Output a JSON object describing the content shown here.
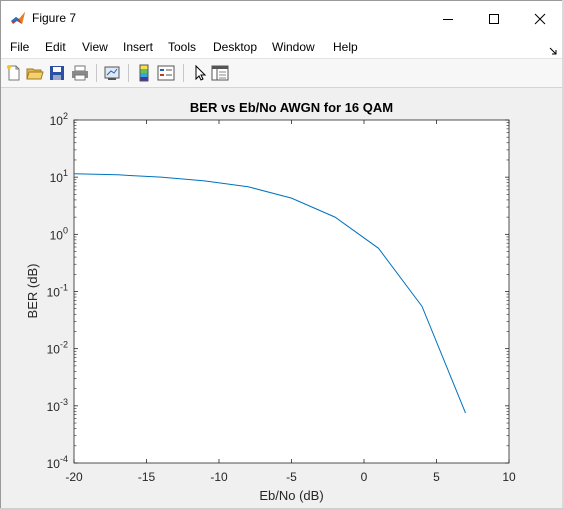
{
  "window": {
    "title": "Figure 7"
  },
  "menu": {
    "items": [
      {
        "name": "menu-file",
        "label": "File"
      },
      {
        "name": "menu-edit",
        "label": "Edit"
      },
      {
        "name": "menu-view",
        "label": "View"
      },
      {
        "name": "menu-insert",
        "label": "Insert"
      },
      {
        "name": "menu-tools",
        "label": "Tools"
      },
      {
        "name": "menu-desktop",
        "label": "Desktop"
      },
      {
        "name": "menu-window",
        "label": "Window"
      },
      {
        "name": "menu-help",
        "label": "Help"
      }
    ]
  },
  "toolbar": {
    "icons": [
      "new-figure-icon",
      "open-file-icon",
      "save-icon",
      "print-icon",
      "link-plot-icon",
      "insert-colorbar-icon",
      "insert-legend-icon",
      "edit-plot-arrow-icon",
      "property-inspector-icon"
    ]
  },
  "colors": {
    "line": "#0072BD",
    "axes_bg": "#ffffff",
    "figure_bg": "#f0f0f0"
  },
  "chart_data": {
    "type": "line",
    "title": "BER vs Eb/No AWGN for 16 QAM",
    "xlabel": "Eb/No (dB)",
    "ylabel": "BER (dB)",
    "xlim": [
      -20,
      10
    ],
    "ylim": [
      0.0001,
      100
    ],
    "yscale": "log",
    "grid": false,
    "x_ticks": [
      "-20",
      "-15",
      "-10",
      "-5",
      "0",
      "5",
      "10"
    ],
    "y_ticks": [
      {
        "base": "10",
        "exp": "-4"
      },
      {
        "base": "10",
        "exp": "-3"
      },
      {
        "base": "10",
        "exp": "-2"
      },
      {
        "base": "10",
        "exp": "-1"
      },
      {
        "base": "10",
        "exp": "0"
      },
      {
        "base": "10",
        "exp": "1"
      },
      {
        "base": "10",
        "exp": "2"
      }
    ],
    "series": [
      {
        "x": [
          -20,
          -17,
          -14,
          -11,
          -8,
          -5,
          -2,
          1,
          4,
          7
        ],
        "y": [
          11.5,
          11.0,
          10.0,
          8.6,
          6.8,
          4.3,
          2.0,
          0.57,
          0.055,
          0.00075
        ]
      }
    ]
  }
}
